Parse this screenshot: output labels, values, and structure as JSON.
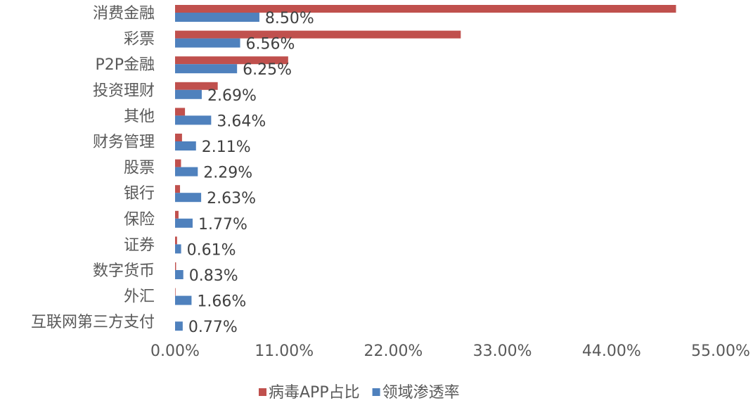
{
  "chart_data": {
    "type": "hbar",
    "categories": [
      "消费金融",
      "彩票",
      "P2P金融",
      "投资理财",
      "其他",
      "财务管理",
      "股票",
      "银行",
      "保险",
      "证券",
      "数字货币",
      "外汇",
      "互联网第三方支付"
    ],
    "series": [
      {
        "name": "病毒APP占比",
        "color": "#c0504d",
        "values": [
          50.5,
          28.8,
          11.4,
          4.3,
          1.0,
          0.7,
          0.6,
          0.5,
          0.35,
          0.2,
          0.1,
          0.05,
          0
        ]
      },
      {
        "name": "领域渗透率",
        "color": "#4f81bd",
        "values": [
          8.5,
          6.56,
          6.25,
          2.69,
          3.64,
          2.11,
          2.29,
          2.63,
          1.77,
          0.61,
          0.83,
          1.66,
          0.77
        ],
        "value_labels": [
          "8.50%",
          "6.56%",
          "6.25%",
          "2.69%",
          "3.64%",
          "2.11%",
          "2.29%",
          "2.63%",
          "1.77%",
          "0.61%",
          "0.83%",
          "1.66%",
          "0.77%"
        ]
      }
    ],
    "xlim": [
      0,
      55
    ],
    "xticks": [
      {
        "value": 0,
        "label": "0.00%"
      },
      {
        "value": 11,
        "label": "11.00%"
      },
      {
        "value": 22,
        "label": "22.00%"
      },
      {
        "value": 33,
        "label": "33.00%"
      },
      {
        "value": 44,
        "label": "44.00%"
      },
      {
        "value": 55,
        "label": "55.00%"
      }
    ],
    "legend": "bottom"
  }
}
